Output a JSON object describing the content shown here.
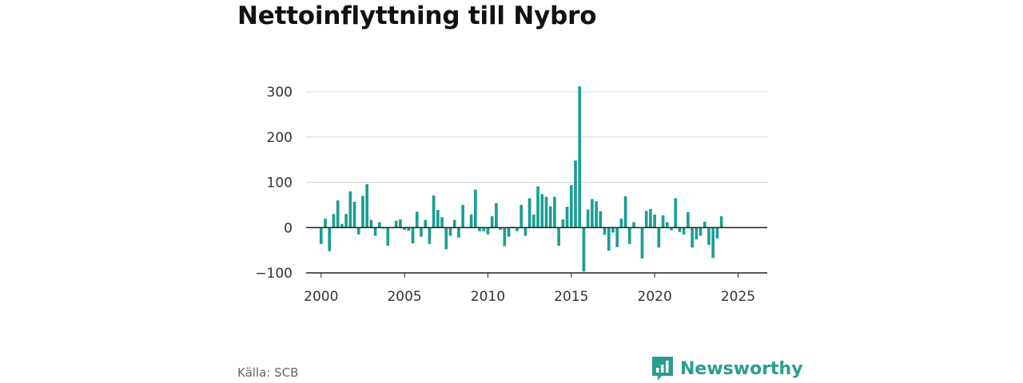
{
  "title": "Nettoinflyttning till Nybro",
  "source": "Källa: SCB",
  "brand": {
    "name": "Newsworthy",
    "icon": "newsworthy-logo-icon"
  },
  "colors": {
    "bar": "#1a9e92",
    "grid": "#d6d6d6",
    "axis": "#222222",
    "brand": "#2a9d8f"
  },
  "chart_data": {
    "type": "bar",
    "frequency": "quarterly",
    "x_start": 2000.0,
    "x_step": 0.25,
    "xlim": [
      1999.1,
      2026.75
    ],
    "ylim": [
      -100,
      300
    ],
    "y_ticks": [
      -100,
      0,
      100,
      200,
      300
    ],
    "y_tick_labels": [
      "−100",
      "0",
      "100",
      "200",
      "300"
    ],
    "x_ticks": [
      2000,
      2005,
      2010,
      2015,
      2020,
      2025
    ],
    "x_tick_labels": [
      "2000",
      "2005",
      "2010",
      "2015",
      "2020",
      "2025"
    ],
    "grid": true,
    "legend": "none",
    "xlabel": "",
    "ylabel": "",
    "values": [
      -36,
      20,
      -52,
      30,
      60,
      8,
      30,
      80,
      57,
      -15,
      70,
      96,
      17,
      -18,
      12,
      -2,
      -40,
      1,
      15,
      18,
      -5,
      -7,
      -35,
      35,
      -20,
      17,
      -36,
      71,
      39,
      23,
      -48,
      -18,
      17,
      -22,
      50,
      0,
      29,
      84,
      -8,
      -8,
      -15,
      25,
      54,
      -5,
      -41,
      -20,
      2,
      -8,
      50,
      -18,
      65,
      29,
      91,
      74,
      68,
      47,
      68,
      -40,
      18,
      46,
      94,
      148,
      312,
      -97,
      40,
      63,
      58,
      36,
      -16,
      -51,
      -11,
      -43,
      20,
      69,
      -36,
      12,
      0,
      -68,
      37,
      41,
      29,
      -44,
      27,
      12,
      -6,
      65,
      -10,
      -15,
      34,
      -44,
      -26,
      -18,
      13,
      -38,
      -67,
      -24,
      25
    ]
  }
}
